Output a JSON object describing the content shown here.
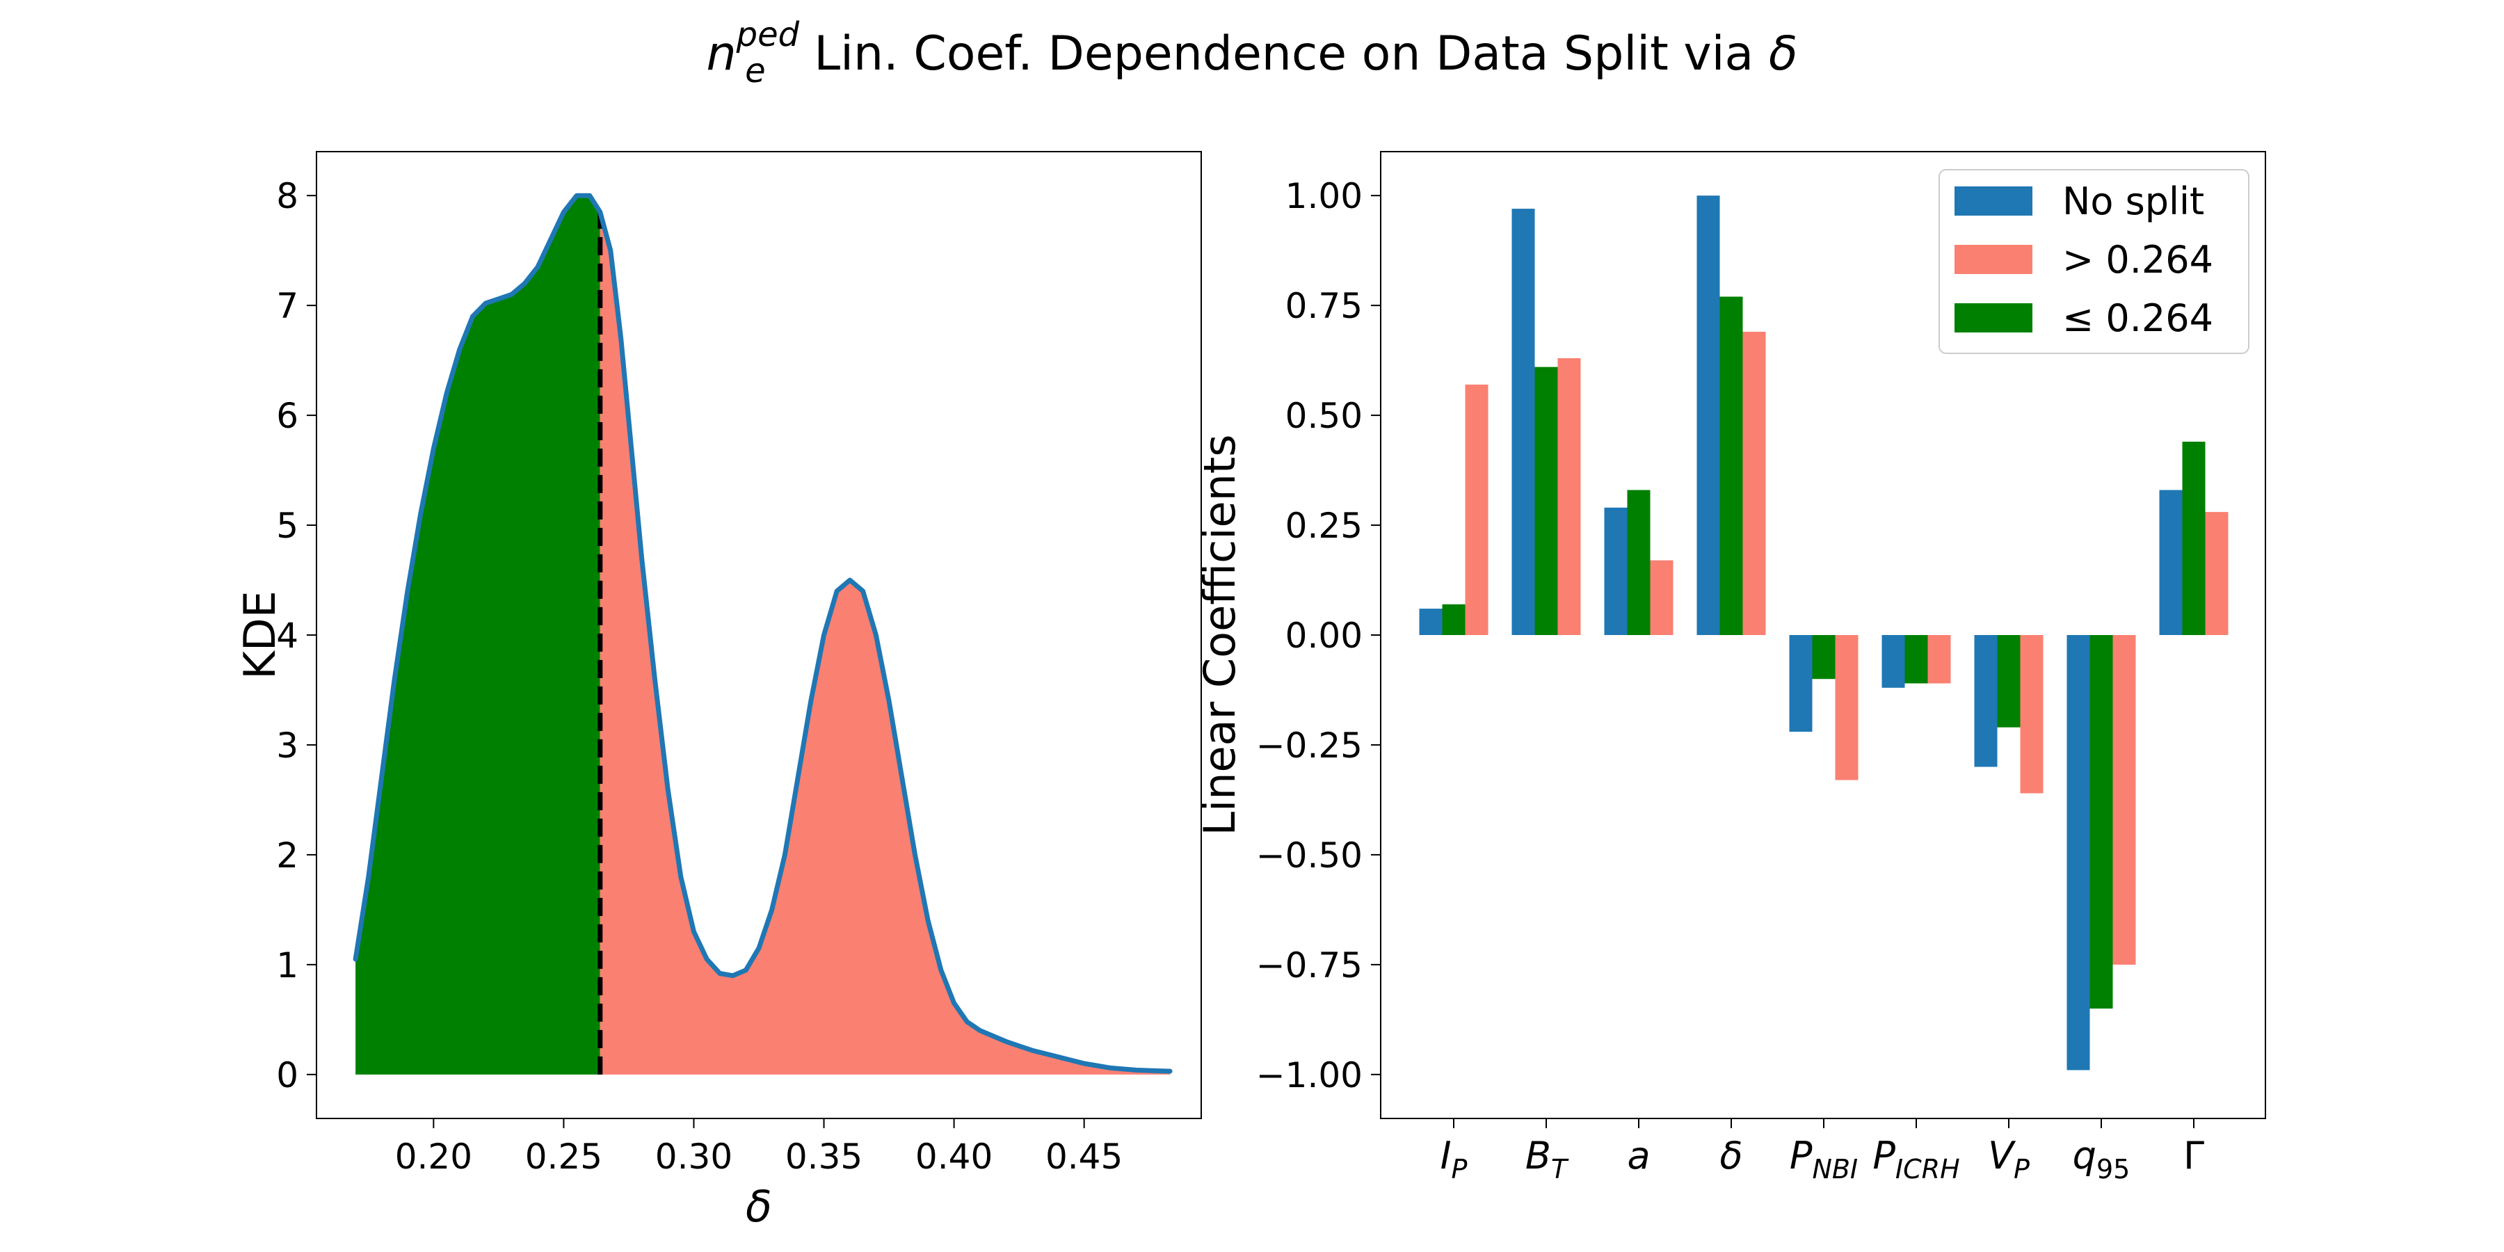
{
  "figure": {
    "title_symbol": "n",
    "title_sub": "e",
    "title_sup": "ped",
    "title_rest": " Lin. Coef. Dependence on Data Split via ",
    "title_delta": "δ"
  },
  "colors": {
    "no_split": "#1f77b4",
    "above": "#fa8072",
    "below": "#008000",
    "kde_line": "#1f77b4",
    "split_line": "#000000"
  },
  "chart_data": [
    {
      "type": "area",
      "xlabel": "δ",
      "ylabel": "KDE",
      "xlim": [
        0.155,
        0.495
      ],
      "ylim": [
        -0.4,
        8.4
      ],
      "x_ticks": [
        0.2,
        0.25,
        0.3,
        0.35,
        0.4,
        0.45
      ],
      "x_tick_labels": [
        "0.20",
        "0.25",
        "0.30",
        "0.35",
        "0.40",
        "0.45"
      ],
      "y_ticks": [
        0,
        1,
        2,
        3,
        4,
        5,
        6,
        7,
        8
      ],
      "y_tick_labels": [
        "0",
        "1",
        "2",
        "3",
        "4",
        "5",
        "6",
        "7",
        "8"
      ],
      "split_value": 0.264,
      "fill_below_color": "#008000",
      "fill_above_color": "#fa8072",
      "grid": false,
      "curve": {
        "x": [
          0.17,
          0.175,
          0.18,
          0.185,
          0.19,
          0.195,
          0.2,
          0.205,
          0.21,
          0.215,
          0.22,
          0.225,
          0.23,
          0.235,
          0.24,
          0.245,
          0.25,
          0.255,
          0.26,
          0.264,
          0.268,
          0.272,
          0.276,
          0.28,
          0.285,
          0.29,
          0.295,
          0.3,
          0.305,
          0.31,
          0.315,
          0.32,
          0.325,
          0.33,
          0.335,
          0.34,
          0.345,
          0.35,
          0.355,
          0.36,
          0.365,
          0.37,
          0.375,
          0.38,
          0.385,
          0.39,
          0.395,
          0.4,
          0.405,
          0.41,
          0.415,
          0.42,
          0.425,
          0.43,
          0.44,
          0.45,
          0.46,
          0.47,
          0.483
        ],
        "y": [
          1.05,
          1.8,
          2.7,
          3.6,
          4.4,
          5.1,
          5.7,
          6.2,
          6.6,
          6.9,
          7.02,
          7.06,
          7.1,
          7.2,
          7.35,
          7.6,
          7.85,
          8.0,
          8.0,
          7.85,
          7.5,
          6.7,
          5.7,
          4.7,
          3.6,
          2.6,
          1.8,
          1.3,
          1.05,
          0.92,
          0.9,
          0.95,
          1.15,
          1.5,
          2.0,
          2.7,
          3.4,
          4.0,
          4.4,
          4.5,
          4.4,
          4.0,
          3.4,
          2.7,
          2.0,
          1.4,
          0.95,
          0.65,
          0.48,
          0.4,
          0.35,
          0.3,
          0.26,
          0.22,
          0.16,
          0.1,
          0.06,
          0.04,
          0.03
        ]
      }
    },
    {
      "type": "bar",
      "ylabel": "Linear Coefficients",
      "xlabel": "",
      "ylim": [
        -1.1,
        1.1
      ],
      "y_ticks": [
        -1.0,
        -0.75,
        -0.5,
        -0.25,
        0.0,
        0.25,
        0.5,
        0.75,
        1.0
      ],
      "y_tick_labels": [
        "−1.00",
        "−0.75",
        "−0.50",
        "−0.25",
        "0.00",
        "0.25",
        "0.50",
        "0.75",
        "1.00"
      ],
      "grid": false,
      "legend_placement": "top-right",
      "categories": [
        {
          "base": "I",
          "sub": "P"
        },
        {
          "base": "B",
          "sub": "T"
        },
        {
          "base": "a",
          "sub": ""
        },
        {
          "base": "δ",
          "sub": ""
        },
        {
          "base": "P",
          "sub": "NBI"
        },
        {
          "base": "P",
          "sub": "ICRH"
        },
        {
          "base": "V",
          "sub": "P"
        },
        {
          "base": "q",
          "sub": "95",
          "sub_upright": true
        },
        {
          "base": "Γ",
          "sub": "",
          "upright": true
        }
      ],
      "series": [
        {
          "name": "No split",
          "color": "#1f77b4",
          "values": [
            0.06,
            0.97,
            0.29,
            1.0,
            -0.22,
            -0.12,
            -0.3,
            -0.99,
            0.33
          ]
        },
        {
          "name": "≤ 0.264",
          "color": "#008000",
          "values": [
            0.07,
            0.61,
            0.33,
            0.77,
            -0.1,
            -0.11,
            -0.21,
            -0.85,
            0.44
          ]
        },
        {
          "name": "> 0.264",
          "color": "#fa8072",
          "values": [
            0.57,
            0.63,
            0.17,
            0.69,
            -0.33,
            -0.11,
            -0.36,
            -0.75,
            0.28
          ]
        }
      ],
      "legend": [
        {
          "label": "No split",
          "color": "#1f77b4"
        },
        {
          "label": "> 0.264",
          "color": "#fa8072"
        },
        {
          "label": " ≤  0.264",
          "color": "#008000"
        }
      ]
    }
  ]
}
